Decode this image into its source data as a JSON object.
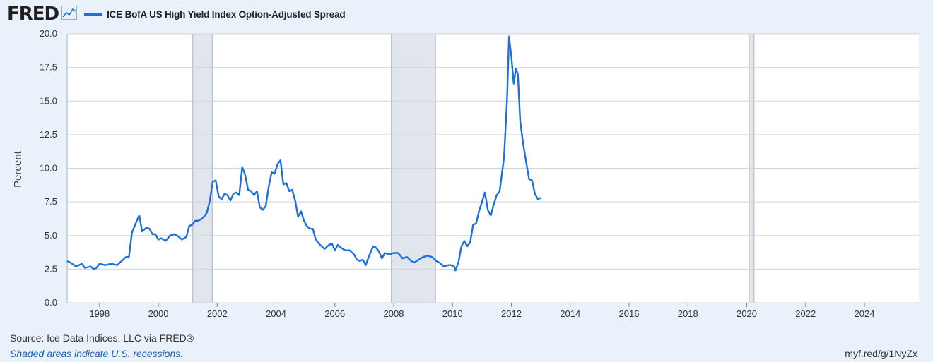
{
  "header": {
    "logo": "FRED",
    "logo_icon": "line-chart-icon",
    "legend_label": "ICE BofA US High Yield Index Option-Adjusted Spread"
  },
  "footer": {
    "source": "Source: Ice Data Indices, LLC via FRED®",
    "note": "Shaded areas indicate U.S. recessions.",
    "shortlink": "myf.red/g/1NyZx"
  },
  "colors": {
    "series": "#1c6fde",
    "recession": "#e1e6ec",
    "background": "#e9f1fa",
    "plot": "#ffffff"
  },
  "chart_data": {
    "type": "line",
    "title": "",
    "xlabel": "",
    "ylabel": "Percent",
    "xlim": [
      1996.9,
      2025.85
    ],
    "ylim": [
      0,
      20
    ],
    "yticks": [
      "0.0",
      "2.5",
      "5.0",
      "7.5",
      "10.0",
      "12.5",
      "15.0",
      "17.5",
      "20.0"
    ],
    "xticks": [
      "1998",
      "2000",
      "2002",
      "2004",
      "2006",
      "2008",
      "2010",
      "2012",
      "2014",
      "2016",
      "2018",
      "2020",
      "2022",
      "2024"
    ],
    "grid": "horizontal",
    "recessions": [
      [
        2001.17,
        2001.83
      ],
      [
        2007.92,
        2009.42
      ],
      [
        2020.08,
        2020.25
      ]
    ],
    "series": [
      {
        "name": "ICE BofA US High Yield Index Option-Adjusted Spread",
        "points": [
          [
            1996.9,
            3.1
          ],
          [
            1997.0,
            3.0
          ],
          [
            1997.2,
            2.7
          ],
          [
            1997.4,
            2.9
          ],
          [
            1997.5,
            2.6
          ],
          [
            1997.7,
            2.7
          ],
          [
            1997.8,
            2.5
          ],
          [
            1997.9,
            2.6
          ],
          [
            1998.0,
            2.9
          ],
          [
            1998.2,
            2.8
          ],
          [
            1998.4,
            2.9
          ],
          [
            1998.6,
            2.8
          ],
          [
            1998.7,
            3.0
          ],
          [
            1998.8,
            3.2
          ],
          [
            1998.9,
            3.4
          ],
          [
            1999.0,
            3.4
          ],
          [
            1999.1,
            5.2
          ],
          [
            1999.25,
            6.0
          ],
          [
            1999.35,
            6.5
          ],
          [
            1999.45,
            5.3
          ],
          [
            1999.6,
            5.6
          ],
          [
            1999.7,
            5.5
          ],
          [
            1999.8,
            5.1
          ],
          [
            1999.9,
            5.1
          ],
          [
            2000.0,
            4.7
          ],
          [
            2000.1,
            4.8
          ],
          [
            2000.25,
            4.6
          ],
          [
            2000.4,
            5.0
          ],
          [
            2000.55,
            5.1
          ],
          [
            2000.7,
            4.9
          ],
          [
            2000.8,
            4.7
          ],
          [
            2000.95,
            4.9
          ],
          [
            2001.05,
            5.7
          ],
          [
            2001.15,
            5.8
          ],
          [
            2001.25,
            6.1
          ],
          [
            2001.35,
            6.1
          ],
          [
            2001.45,
            6.2
          ],
          [
            2001.55,
            6.4
          ],
          [
            2001.65,
            6.7
          ],
          [
            2001.75,
            7.6
          ],
          [
            2001.85,
            9.0
          ],
          [
            2001.95,
            9.1
          ],
          [
            2002.05,
            7.9
          ],
          [
            2002.15,
            7.7
          ],
          [
            2002.25,
            8.1
          ],
          [
            2002.35,
            8.0
          ],
          [
            2002.45,
            7.6
          ],
          [
            2002.55,
            8.1
          ],
          [
            2002.65,
            8.2
          ],
          [
            2002.75,
            8.0
          ],
          [
            2002.85,
            10.1
          ],
          [
            2002.95,
            9.5
          ],
          [
            2003.05,
            8.4
          ],
          [
            2003.15,
            8.3
          ],
          [
            2003.25,
            8.0
          ],
          [
            2003.35,
            8.3
          ],
          [
            2003.45,
            7.1
          ],
          [
            2003.55,
            6.9
          ],
          [
            2003.65,
            7.2
          ],
          [
            2003.75,
            8.6
          ],
          [
            2003.85,
            9.7
          ],
          [
            2003.95,
            9.6
          ],
          [
            2004.05,
            10.3
          ],
          [
            2004.15,
            10.6
          ],
          [
            2004.25,
            8.8
          ],
          [
            2004.35,
            8.9
          ],
          [
            2004.45,
            8.3
          ],
          [
            2004.55,
            8.4
          ],
          [
            2004.65,
            7.6
          ],
          [
            2004.75,
            6.4
          ],
          [
            2004.85,
            6.8
          ],
          [
            2004.95,
            6.1
          ],
          [
            2005.05,
            5.7
          ],
          [
            2005.15,
            5.5
          ],
          [
            2005.25,
            5.5
          ],
          [
            2005.35,
            4.7
          ],
          [
            2005.5,
            4.3
          ],
          [
            2005.65,
            4.0
          ],
          [
            2005.8,
            4.3
          ],
          [
            2005.9,
            4.4
          ],
          [
            2006.0,
            3.9
          ],
          [
            2006.1,
            4.3
          ],
          [
            2006.2,
            4.1
          ],
          [
            2006.35,
            3.9
          ],
          [
            2006.5,
            3.9
          ],
          [
            2006.65,
            3.6
          ],
          [
            2006.75,
            3.2
          ],
          [
            2006.85,
            3.1
          ],
          [
            2006.95,
            3.2
          ],
          [
            2007.05,
            2.8
          ],
          [
            2007.15,
            3.4
          ],
          [
            2007.3,
            4.2
          ],
          [
            2007.4,
            4.1
          ],
          [
            2007.5,
            3.8
          ],
          [
            2007.6,
            3.3
          ],
          [
            2007.7,
            3.7
          ],
          [
            2007.85,
            3.6
          ],
          [
            2008.0,
            3.7
          ],
          [
            2008.15,
            3.7
          ],
          [
            2008.3,
            3.3
          ],
          [
            2008.45,
            3.4
          ],
          [
            2008.6,
            3.1
          ],
          [
            2008.7,
            3.0
          ],
          [
            2008.85,
            3.2
          ],
          [
            2009.0,
            3.4
          ],
          [
            2009.15,
            3.5
          ],
          [
            2009.3,
            3.4
          ],
          [
            2009.45,
            3.1
          ],
          [
            2009.55,
            3.0
          ],
          [
            2009.7,
            2.7
          ],
          [
            2009.85,
            2.8
          ],
          [
            2009.95,
            2.8
          ],
          [
            2010.05,
            2.7
          ],
          [
            2010.1,
            2.4
          ],
          [
            2010.2,
            3.0
          ],
          [
            2010.3,
            4.2
          ],
          [
            2010.4,
            4.6
          ],
          [
            2010.5,
            4.2
          ],
          [
            2010.6,
            4.5
          ],
          [
            2010.7,
            5.8
          ],
          [
            2010.8,
            5.9
          ],
          [
            2010.9,
            6.8
          ],
          [
            2011.0,
            7.5
          ],
          [
            2011.1,
            8.2
          ],
          [
            2011.2,
            6.9
          ],
          [
            2011.3,
            6.5
          ],
          [
            2011.4,
            7.3
          ],
          [
            2011.5,
            8.0
          ],
          [
            2011.6,
            8.3
          ],
          [
            2011.75,
            10.8
          ],
          [
            2011.85,
            15.0
          ],
          [
            2011.92,
            19.8
          ],
          [
            2012.0,
            18.3
          ],
          [
            2012.08,
            16.3
          ],
          [
            2012.15,
            17.4
          ],
          [
            2012.22,
            17.0
          ],
          [
            2012.3,
            13.5
          ],
          [
            2012.4,
            11.8
          ],
          [
            2012.5,
            10.5
          ],
          [
            2012.6,
            9.2
          ],
          [
            2012.7,
            9.1
          ],
          [
            2012.8,
            8.1
          ],
          [
            2012.9,
            7.7
          ],
          [
            2013.0,
            7.8
          ]
        ]
      }
    ]
  }
}
